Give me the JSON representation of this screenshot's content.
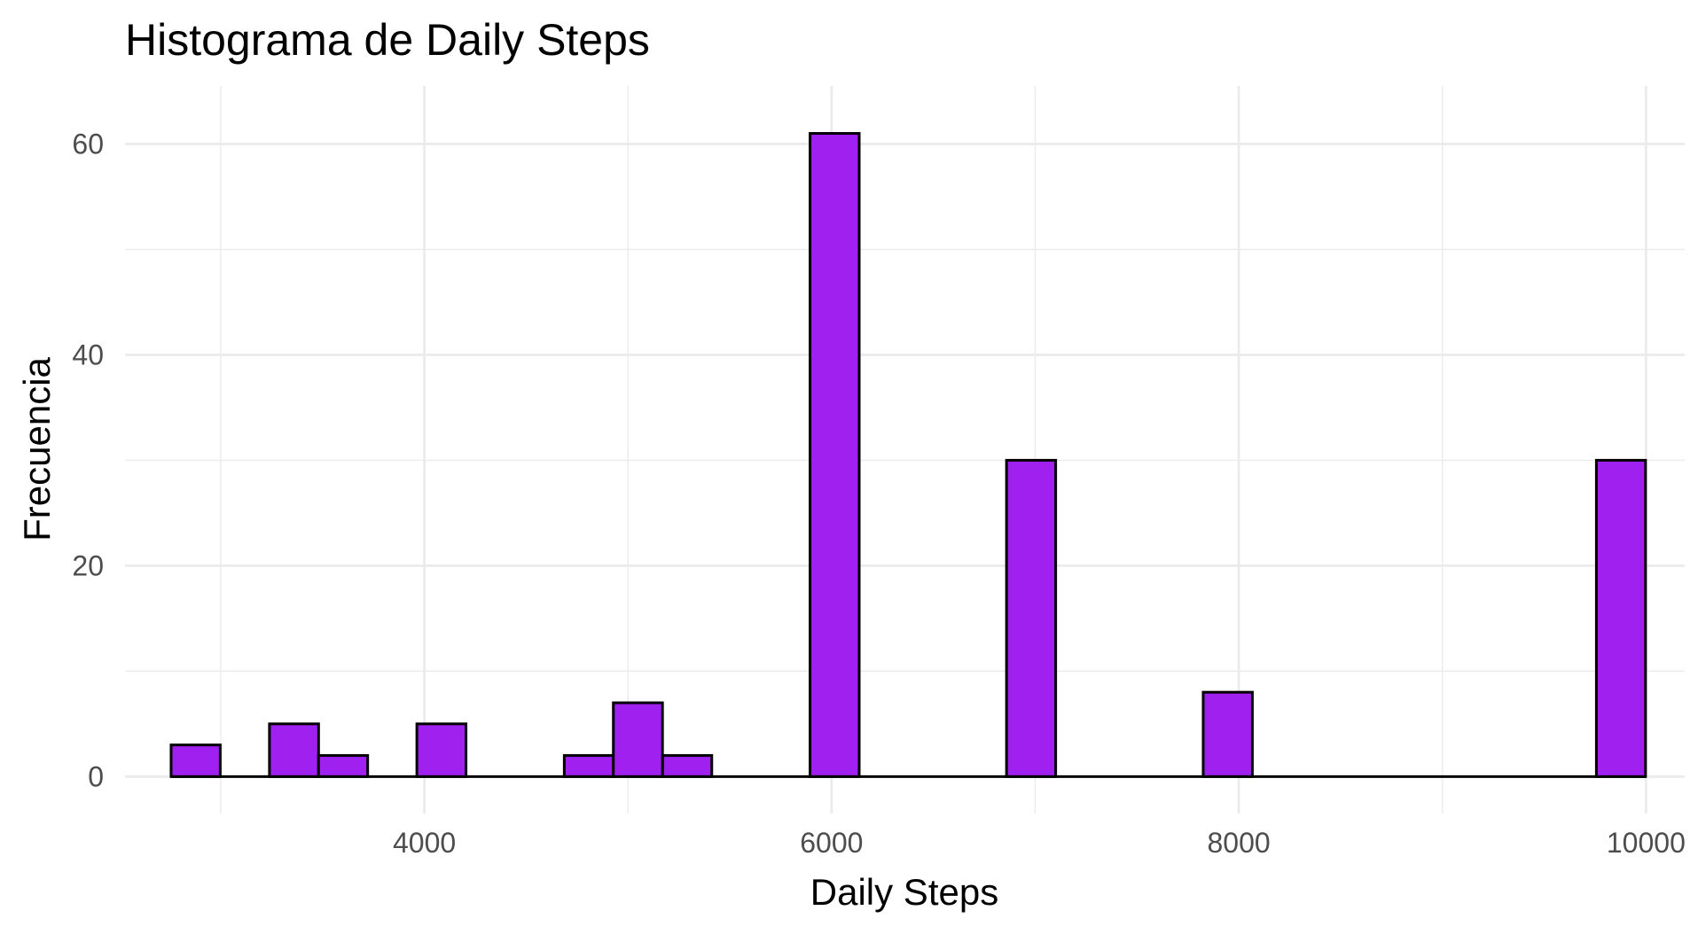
{
  "chart_data": {
    "type": "bar",
    "title": "Histograma de Daily Steps",
    "xlabel": "Daily Steps",
    "ylabel": "Frecuencia",
    "xlim": [
      2530,
      10190
    ],
    "ylim": [
      -3.5,
      65.5
    ],
    "x_ticks": [
      4000,
      6000,
      8000,
      10000
    ],
    "x_minor_ticks": [
      3000,
      5000,
      7000,
      9000
    ],
    "y_ticks": [
      0,
      20,
      40,
      60
    ],
    "y_minor_ticks": [
      10,
      30,
      50
    ],
    "bin_width": 241.4,
    "bins": [
      {
        "center": 2877,
        "count": 3
      },
      {
        "center": 3360,
        "count": 5
      },
      {
        "center": 3601,
        "count": 2
      },
      {
        "center": 4084,
        "count": 5
      },
      {
        "center": 4808,
        "count": 2
      },
      {
        "center": 5049,
        "count": 7
      },
      {
        "center": 5291,
        "count": 2
      },
      {
        "center": 6015,
        "count": 61
      },
      {
        "center": 6980,
        "count": 30
      },
      {
        "center": 7946,
        "count": 8
      },
      {
        "center": 9877,
        "count": 30
      }
    ],
    "grid": true,
    "legend": "none",
    "bar_fill": "#A020F0",
    "bar_stroke": "#000000",
    "grid_color": "#EBEBEB"
  }
}
